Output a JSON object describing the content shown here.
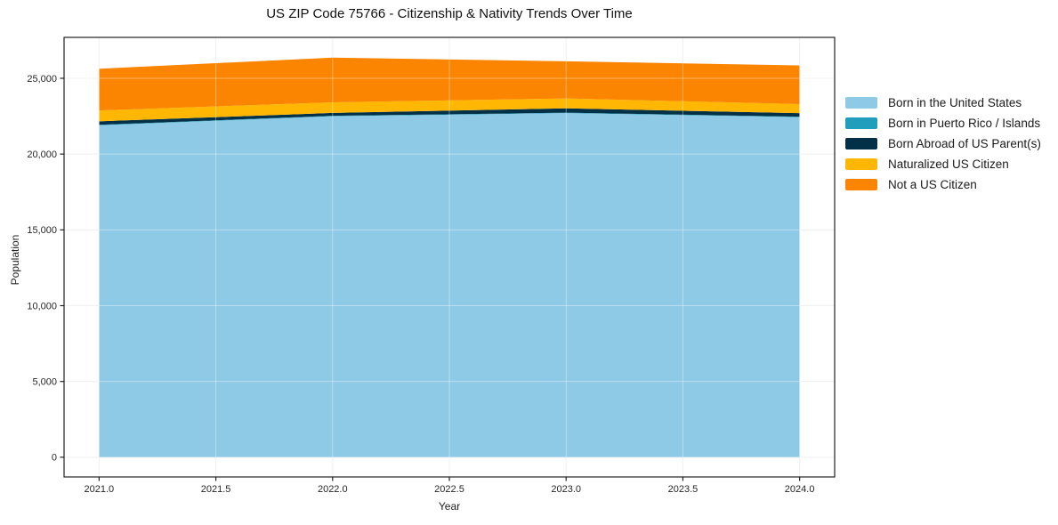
{
  "title": "US ZIP Code 75766 - Citizenship & Nativity Trends Over Time",
  "chart_data": {
    "type": "area",
    "stacked": true,
    "title": "US ZIP Code 75766 - Citizenship & Nativity Trends Over Time",
    "xlabel": "Year",
    "ylabel": "Population",
    "x": [
      2021,
      2022,
      2023,
      2024
    ],
    "series": [
      {
        "name": "Born in the United States",
        "color": "#8ecae6",
        "values": [
          21900,
          22500,
          22700,
          22440
        ]
      },
      {
        "name": "Born in Puerto Rico / Islands",
        "color": "#219ebc",
        "values": [
          30,
          25,
          30,
          30
        ]
      },
      {
        "name": "Born Abroad of US Parent(s)",
        "color": "#023047",
        "values": [
          230,
          190,
          290,
          230
        ]
      },
      {
        "name": "Naturalized US Citizen",
        "color": "#ffb703",
        "values": [
          720,
          700,
          650,
          600
        ]
      },
      {
        "name": "Not a US Citizen",
        "color": "#fb8500",
        "values": [
          2750,
          2950,
          2450,
          2550
        ]
      }
    ],
    "totals": [
      25630,
      26365,
      26120,
      25850
    ],
    "xticks": {
      "values": [
        2021,
        2021.5,
        2022,
        2022.5,
        2023,
        2023.5,
        2024
      ],
      "labels": [
        "2021.0",
        "2021.5",
        "2022.0",
        "2022.5",
        "2023.0",
        "2023.5",
        "2024.0"
      ]
    },
    "yticks": {
      "values": [
        0,
        5000,
        10000,
        15000,
        20000,
        25000
      ],
      "labels": [
        "0",
        "5,000",
        "10,000",
        "15,000",
        "20,000",
        "25,000"
      ]
    },
    "xlim": [
      2020.85,
      2024.15
    ],
    "ylim": [
      -1300,
      27700
    ],
    "grid": true,
    "legend_position": "right-of-plot"
  },
  "style": {
    "background": "#ffffff",
    "spine_color": "#222222",
    "grid_color_under": "#e9e9e9",
    "grid_color_over": "rgba(255,255,255,0.38)",
    "tick_label_color": "#262626",
    "title_color": "#111111"
  }
}
